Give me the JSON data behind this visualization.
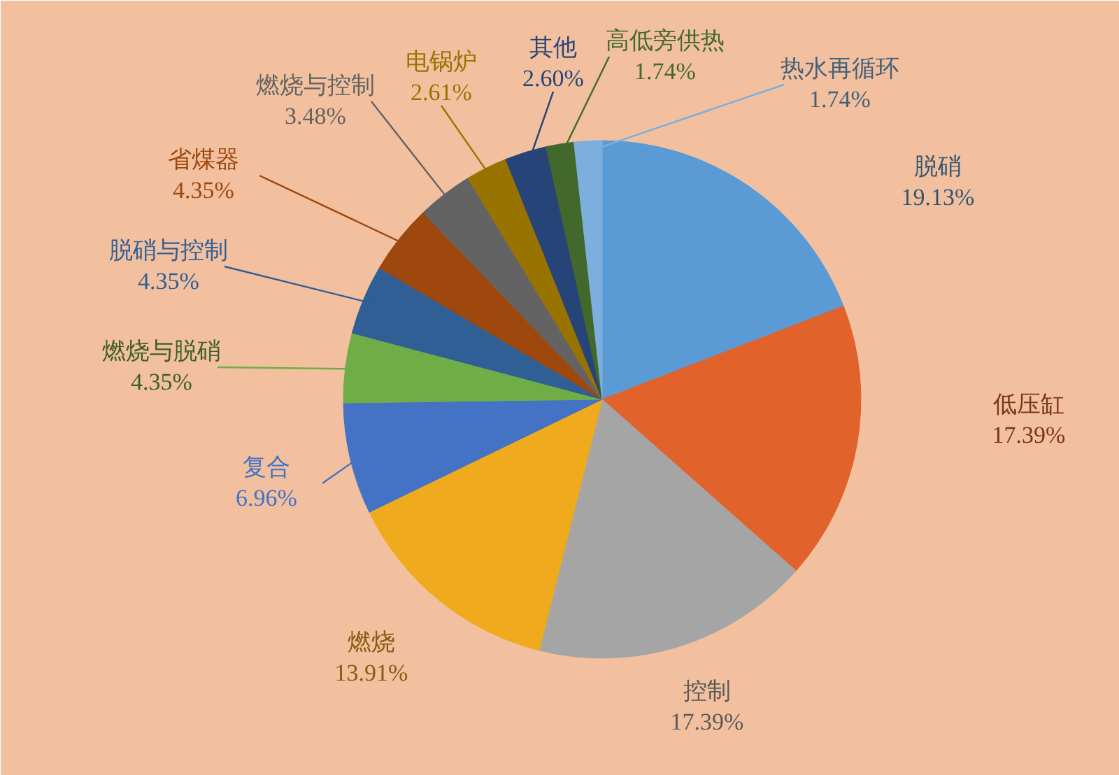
{
  "chart_data": {
    "type": "pie",
    "categories": [
      "脱硝",
      "低压缸",
      "控制",
      "燃烧",
      "复合",
      "燃烧与脱硝",
      "脱硝与控制",
      "省煤器",
      "燃烧与控制",
      "电锅炉",
      "其他",
      "高低旁供热",
      "热水再循环"
    ],
    "values": [
      19.13,
      17.39,
      17.39,
      13.91,
      6.96,
      4.35,
      4.35,
      4.35,
      3.48,
      2.61,
      2.6,
      1.74,
      1.74
    ],
    "value_labels": [
      "19.13%",
      "17.39%",
      "17.39%",
      "13.91%",
      "6.96%",
      "4.35%",
      "4.35%",
      "4.35%",
      "3.48%",
      "2.61%",
      "2.60%",
      "1.74%",
      "1.74%"
    ],
    "colors": [
      "#5b9bd5",
      "#e2622b",
      "#a5a5a5",
      "#f0aa1e",
      "#4472c4",
      "#70ad47",
      "#2f5f95",
      "#9e480e",
      "#636363",
      "#997300",
      "#264478",
      "#43682b",
      "#7cafdd"
    ]
  }
}
